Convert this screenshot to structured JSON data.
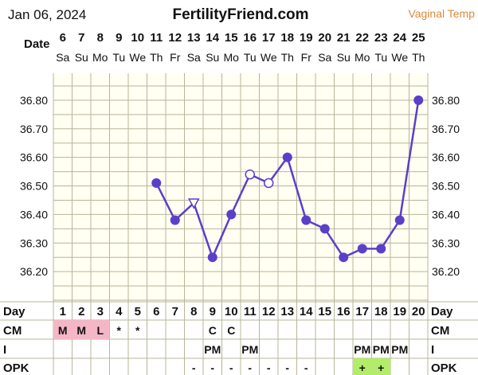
{
  "header": {
    "date": "Jan 06, 2024",
    "site": "FertilityFriend.com",
    "temp_type": "Vaginal Temp",
    "date_row_label": "Date"
  },
  "columns": {
    "dates": [
      "6",
      "7",
      "8",
      "9",
      "10",
      "11",
      "12",
      "13",
      "14",
      "15",
      "16",
      "17",
      "18",
      "19",
      "20",
      "21",
      "22",
      "23",
      "24",
      "25"
    ],
    "weekdays": [
      "Sa",
      "Su",
      "Mo",
      "Tu",
      "We",
      "Th",
      "Fr",
      "Sa",
      "Su",
      "Mo",
      "Tu",
      "We",
      "Th",
      "Fr",
      "Sa",
      "Su",
      "Mo",
      "Tu",
      "We",
      "Th"
    ],
    "cycle_days": [
      "1",
      "2",
      "3",
      "4",
      "5",
      "6",
      "7",
      "8",
      "9",
      "10",
      "11",
      "12",
      "13",
      "14",
      "15",
      "16",
      "17",
      "18",
      "19",
      "20"
    ]
  },
  "rows": {
    "day_label": "Day",
    "cm_label": "CM",
    "i_label": "I",
    "opk_label": "OPK",
    "cm": [
      "M",
      "M",
      "L",
      "*",
      "*",
      "",
      "",
      "",
      "C",
      "C",
      "",
      "",
      "",
      "",
      "",
      "",
      "",
      "",
      "",
      ""
    ],
    "i": [
      "",
      "",
      "",
      "",
      "",
      "",
      "",
      "",
      "PM",
      "",
      "PM",
      "",
      "",
      "",
      "",
      "",
      "PM",
      "PM",
      "PM",
      ""
    ],
    "opk": [
      "",
      "",
      "",
      "",
      "",
      "",
      "",
      "-",
      "-",
      "-",
      "-",
      "-",
      "-",
      "-",
      "",
      "",
      "+",
      "+",
      "",
      ""
    ]
  },
  "colors": {
    "line": "#5b3fc9",
    "grid": "#b8b49a",
    "plot_bg": "#fffff2",
    "cm_menses_bg": "#f5b6c6",
    "opk_positive_bg": "#b2ec6a"
  },
  "chart_data": {
    "type": "line",
    "title": "",
    "x": [
      "1",
      "2",
      "3",
      "4",
      "5",
      "6",
      "7",
      "8",
      "9",
      "10",
      "11",
      "12",
      "13",
      "14",
      "15",
      "16",
      "17",
      "18",
      "19",
      "20"
    ],
    "ylim": [
      36.1,
      36.9
    ],
    "yticks": [
      "36.20",
      "36.30",
      "36.40",
      "36.50",
      "36.60",
      "36.70",
      "36.80"
    ],
    "series": [
      {
        "values": [
          null,
          null,
          null,
          null,
          null,
          36.51,
          36.38,
          36.44,
          36.25,
          36.4,
          36.54,
          36.51,
          36.6,
          36.38,
          36.35,
          36.25,
          36.28,
          36.28,
          36.38,
          36.8
        ],
        "markers": [
          "",
          "",
          "",
          "",
          "",
          "filled",
          "filled",
          "triangle",
          "filled",
          "filled",
          "open",
          "open",
          "filled",
          "filled",
          "filled",
          "filled",
          "filled",
          "filled",
          "filled",
          "filled"
        ]
      }
    ]
  }
}
